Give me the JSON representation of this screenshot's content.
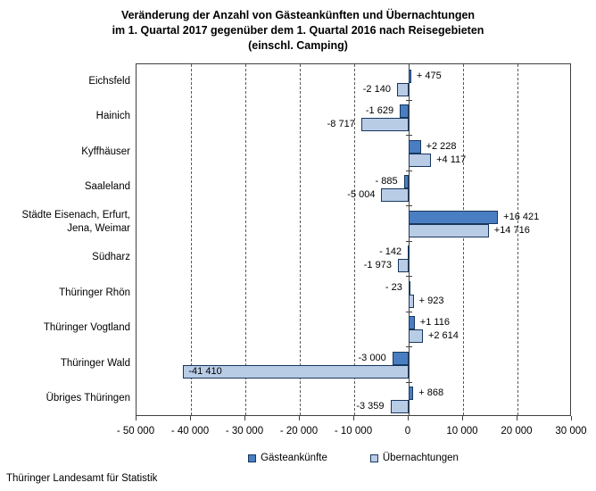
{
  "title": {
    "line1": "Veränderung der Anzahl von Gästeankünften und Übernachtungen",
    "line2": "im 1. Quartal 2017 gegenüber dem 1. Quartal 2016 nach Reisegebieten",
    "line3": "(einschl. Camping)"
  },
  "footer": "Thüringer Landesamt für Statistik",
  "colors": {
    "guest_arrivals": "#4A7EC2",
    "overnight_stays": "#B9CCE6",
    "bar_border": "#17375E"
  },
  "chart_data": {
    "type": "bar",
    "orientation": "horizontal",
    "title": "Veränderung der Anzahl von Gästeankünften und Übernachtungen im 1. Quartal 2017 gegenüber dem 1. Quartal 2016 nach Reisegebieten (einschl. Camping)",
    "xlabel": "",
    "ylabel": "",
    "xlim": [
      -50000,
      30000
    ],
    "grid": "dashed-vertical",
    "legend_position": "bottom",
    "categories": [
      "Eichsfeld",
      "Hainich",
      "Kyffhäuser",
      "Saaleland",
      "Städte Eisenach, Erfurt, Jena, Weimar",
      "Südharz",
      "Thüringer Rhön",
      "Thüringer Vogtland",
      "Thüringer Wald",
      "Übriges Thüringen"
    ],
    "series": [
      {
        "name": "Gästeankünfte",
        "color": "#4A7EC2",
        "values": [
          475,
          -1629,
          2228,
          -885,
          16421,
          -142,
          -23,
          1116,
          -3000,
          868
        ],
        "labels": [
          "+ 475",
          "-1 629",
          "+2 228",
          "- 885",
          "+16 421",
          "- 142",
          "- 23",
          "+1 116",
          "-3 000",
          "+ 868"
        ],
        "label_inside": [
          false,
          false,
          false,
          false,
          false,
          false,
          false,
          false,
          false,
          false
        ]
      },
      {
        "name": "Übernachtungen",
        "color": "#B9CCE6",
        "values": [
          -2140,
          -8717,
          4117,
          -5004,
          14716,
          -1973,
          923,
          2614,
          -41410,
          -3359
        ],
        "labels": [
          "-2 140",
          "-8 717",
          "+4 117",
          "-5 004",
          "+14 716",
          "-1 973",
          "+ 923",
          "+2 614",
          "-41 410",
          "-3 359"
        ],
        "label_inside": [
          false,
          false,
          false,
          false,
          false,
          false,
          false,
          false,
          true,
          false
        ]
      }
    ],
    "x_ticks": [
      {
        "value": -50000,
        "label": "- 50 000"
      },
      {
        "value": -40000,
        "label": "- 40 000"
      },
      {
        "value": -30000,
        "label": "- 30 000"
      },
      {
        "value": -20000,
        "label": "- 20 000"
      },
      {
        "value": -10000,
        "label": "- 10 000"
      },
      {
        "value": 0,
        "label": "0"
      },
      {
        "value": 10000,
        "label": "10 000"
      },
      {
        "value": 20000,
        "label": "20 000"
      },
      {
        "value": 30000,
        "label": "30 000"
      }
    ],
    "gridline_values": [
      -40000,
      -30000,
      -20000,
      -10000,
      10000,
      20000
    ]
  }
}
